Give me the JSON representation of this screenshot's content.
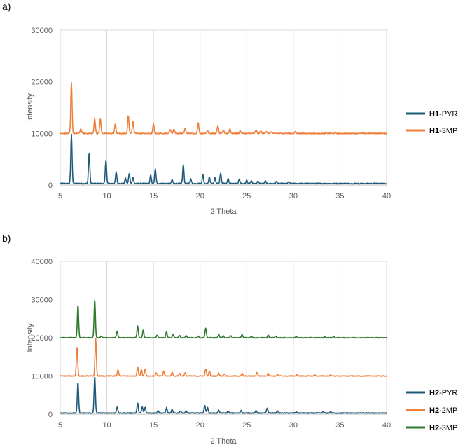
{
  "chart_data": [
    {
      "panel_label": "a)",
      "type": "line",
      "xlabel": "2 Theta",
      "ylabel": "Intensity",
      "xlim": [
        5,
        40
      ],
      "ylim": [
        0,
        30000
      ],
      "xticks": [
        5,
        10,
        15,
        20,
        25,
        30,
        35,
        40
      ],
      "yticks": [
        0,
        10000,
        20000,
        30000
      ],
      "ytick_labels": [
        "0",
        "10000",
        "20000",
        "30000"
      ],
      "grid": "vertical",
      "legend_position": "right",
      "series": [
        {
          "name_bold": "H1",
          "name_rest": "-PYR",
          "color": "#1f5a7a",
          "baseline": 300,
          "peaks": [
            [
              6.2,
              9500
            ],
            [
              8.1,
              5900
            ],
            [
              9.9,
              4500
            ],
            [
              11.0,
              2200
            ],
            [
              12.0,
              1000
            ],
            [
              12.4,
              1900
            ],
            [
              12.8,
              1200
            ],
            [
              14.7,
              1600
            ],
            [
              15.2,
              2800
            ],
            [
              17.0,
              700
            ],
            [
              18.2,
              3600
            ],
            [
              19.0,
              900
            ],
            [
              20.3,
              1700
            ],
            [
              21.0,
              1200
            ],
            [
              21.6,
              1100
            ],
            [
              22.2,
              2000
            ],
            [
              23.0,
              1000
            ],
            [
              24.2,
              800
            ],
            [
              25.0,
              700
            ],
            [
              25.5,
              500
            ],
            [
              26.2,
              500
            ],
            [
              27.0,
              500
            ],
            [
              28.2,
              400
            ],
            [
              29.5,
              300
            ]
          ]
        },
        {
          "name_bold": "H1",
          "name_rest": "-3MP",
          "color": "#f07f3c",
          "baseline": 10000,
          "peaks": [
            [
              6.2,
              9800
            ],
            [
              7.2,
              900
            ],
            [
              8.7,
              2900
            ],
            [
              9.3,
              2800
            ],
            [
              10.9,
              1800
            ],
            [
              12.3,
              3500
            ],
            [
              12.8,
              2400
            ],
            [
              15.0,
              1800
            ],
            [
              16.8,
              800
            ],
            [
              17.2,
              900
            ],
            [
              18.4,
              1000
            ],
            [
              19.8,
              2000
            ],
            [
              20.8,
              600
            ],
            [
              21.9,
              1500
            ],
            [
              22.5,
              700
            ],
            [
              23.2,
              900
            ],
            [
              24.3,
              500
            ],
            [
              26.0,
              700
            ],
            [
              26.5,
              500
            ],
            [
              27.1,
              400
            ],
            [
              27.6,
              300
            ],
            [
              30.2,
              300
            ],
            [
              34.5,
              200
            ]
          ]
        }
      ]
    },
    {
      "panel_label": "b)",
      "type": "line",
      "xlabel": "2 Theta",
      "ylabel": "Intensity",
      "xlim": [
        5,
        40
      ],
      "ylim": [
        0,
        40000
      ],
      "xticks": [
        5,
        10,
        15,
        20,
        25,
        30,
        35,
        40
      ],
      "yticks": [
        0,
        10000,
        20000,
        30000,
        40000
      ],
      "ytick_labels": [
        "0",
        "10000",
        "20000",
        "30000",
        "40000"
      ],
      "grid": "vertical",
      "legend_position": "right",
      "series": [
        {
          "name_bold": "H2",
          "name_rest": "-PYR",
          "color": "#1f5a7a",
          "baseline": 300,
          "peaks": [
            [
              6.9,
              8000
            ],
            [
              8.7,
              9700
            ],
            [
              11.1,
              1600
            ],
            [
              13.3,
              2600
            ],
            [
              13.8,
              1600
            ],
            [
              14.1,
              1500
            ],
            [
              15.5,
              700
            ],
            [
              16.4,
              1400
            ],
            [
              17.0,
              900
            ],
            [
              17.9,
              600
            ],
            [
              18.5,
              600
            ],
            [
              20.5,
              2100
            ],
            [
              20.8,
              1400
            ],
            [
              22.0,
              700
            ],
            [
              23.0,
              500
            ],
            [
              24.4,
              700
            ],
            [
              26.0,
              600
            ],
            [
              27.2,
              1300
            ],
            [
              28.3,
              500
            ],
            [
              30.3,
              300
            ],
            [
              33.2,
              400
            ],
            [
              34.0,
              300
            ]
          ]
        },
        {
          "name_bold": "H2",
          "name_rest": "-2MP",
          "color": "#f07f3c",
          "baseline": 10000,
          "peaks": [
            [
              6.8,
              7500
            ],
            [
              8.8,
              9800
            ],
            [
              11.2,
              1600
            ],
            [
              13.3,
              2400
            ],
            [
              13.7,
              1700
            ],
            [
              14.1,
              1800
            ],
            [
              15.3,
              800
            ],
            [
              16.1,
              1300
            ],
            [
              17.0,
              1000
            ],
            [
              17.8,
              700
            ],
            [
              18.4,
              800
            ],
            [
              20.6,
              1900
            ],
            [
              21.0,
              1300
            ],
            [
              22.0,
              700
            ],
            [
              22.6,
              600
            ],
            [
              24.5,
              700
            ],
            [
              26.1,
              900
            ],
            [
              27.3,
              700
            ],
            [
              28.3,
              400
            ],
            [
              30.4,
              300
            ],
            [
              32.3,
              300
            ],
            [
              34.0,
              300
            ]
          ]
        },
        {
          "name_bold": "H2",
          "name_rest": "-3MP",
          "color": "#2f7a2d",
          "baseline": 20000,
          "peaks": [
            [
              6.9,
              8600
            ],
            [
              8.7,
              10100
            ],
            [
              9.4,
              400
            ],
            [
              11.1,
              1700
            ],
            [
              13.3,
              3200
            ],
            [
              13.9,
              2000
            ],
            [
              15.4,
              700
            ],
            [
              16.4,
              1600
            ],
            [
              17.1,
              900
            ],
            [
              17.8,
              700
            ],
            [
              18.5,
              600
            ],
            [
              19.8,
              500
            ],
            [
              20.6,
              2500
            ],
            [
              22.0,
              800
            ],
            [
              22.5,
              500
            ],
            [
              23.3,
              500
            ],
            [
              24.5,
              900
            ],
            [
              25.5,
              400
            ],
            [
              27.3,
              700
            ],
            [
              28.1,
              500
            ],
            [
              30.3,
              300
            ],
            [
              33.4,
              300
            ],
            [
              34.3,
              300
            ]
          ]
        }
      ]
    }
  ]
}
